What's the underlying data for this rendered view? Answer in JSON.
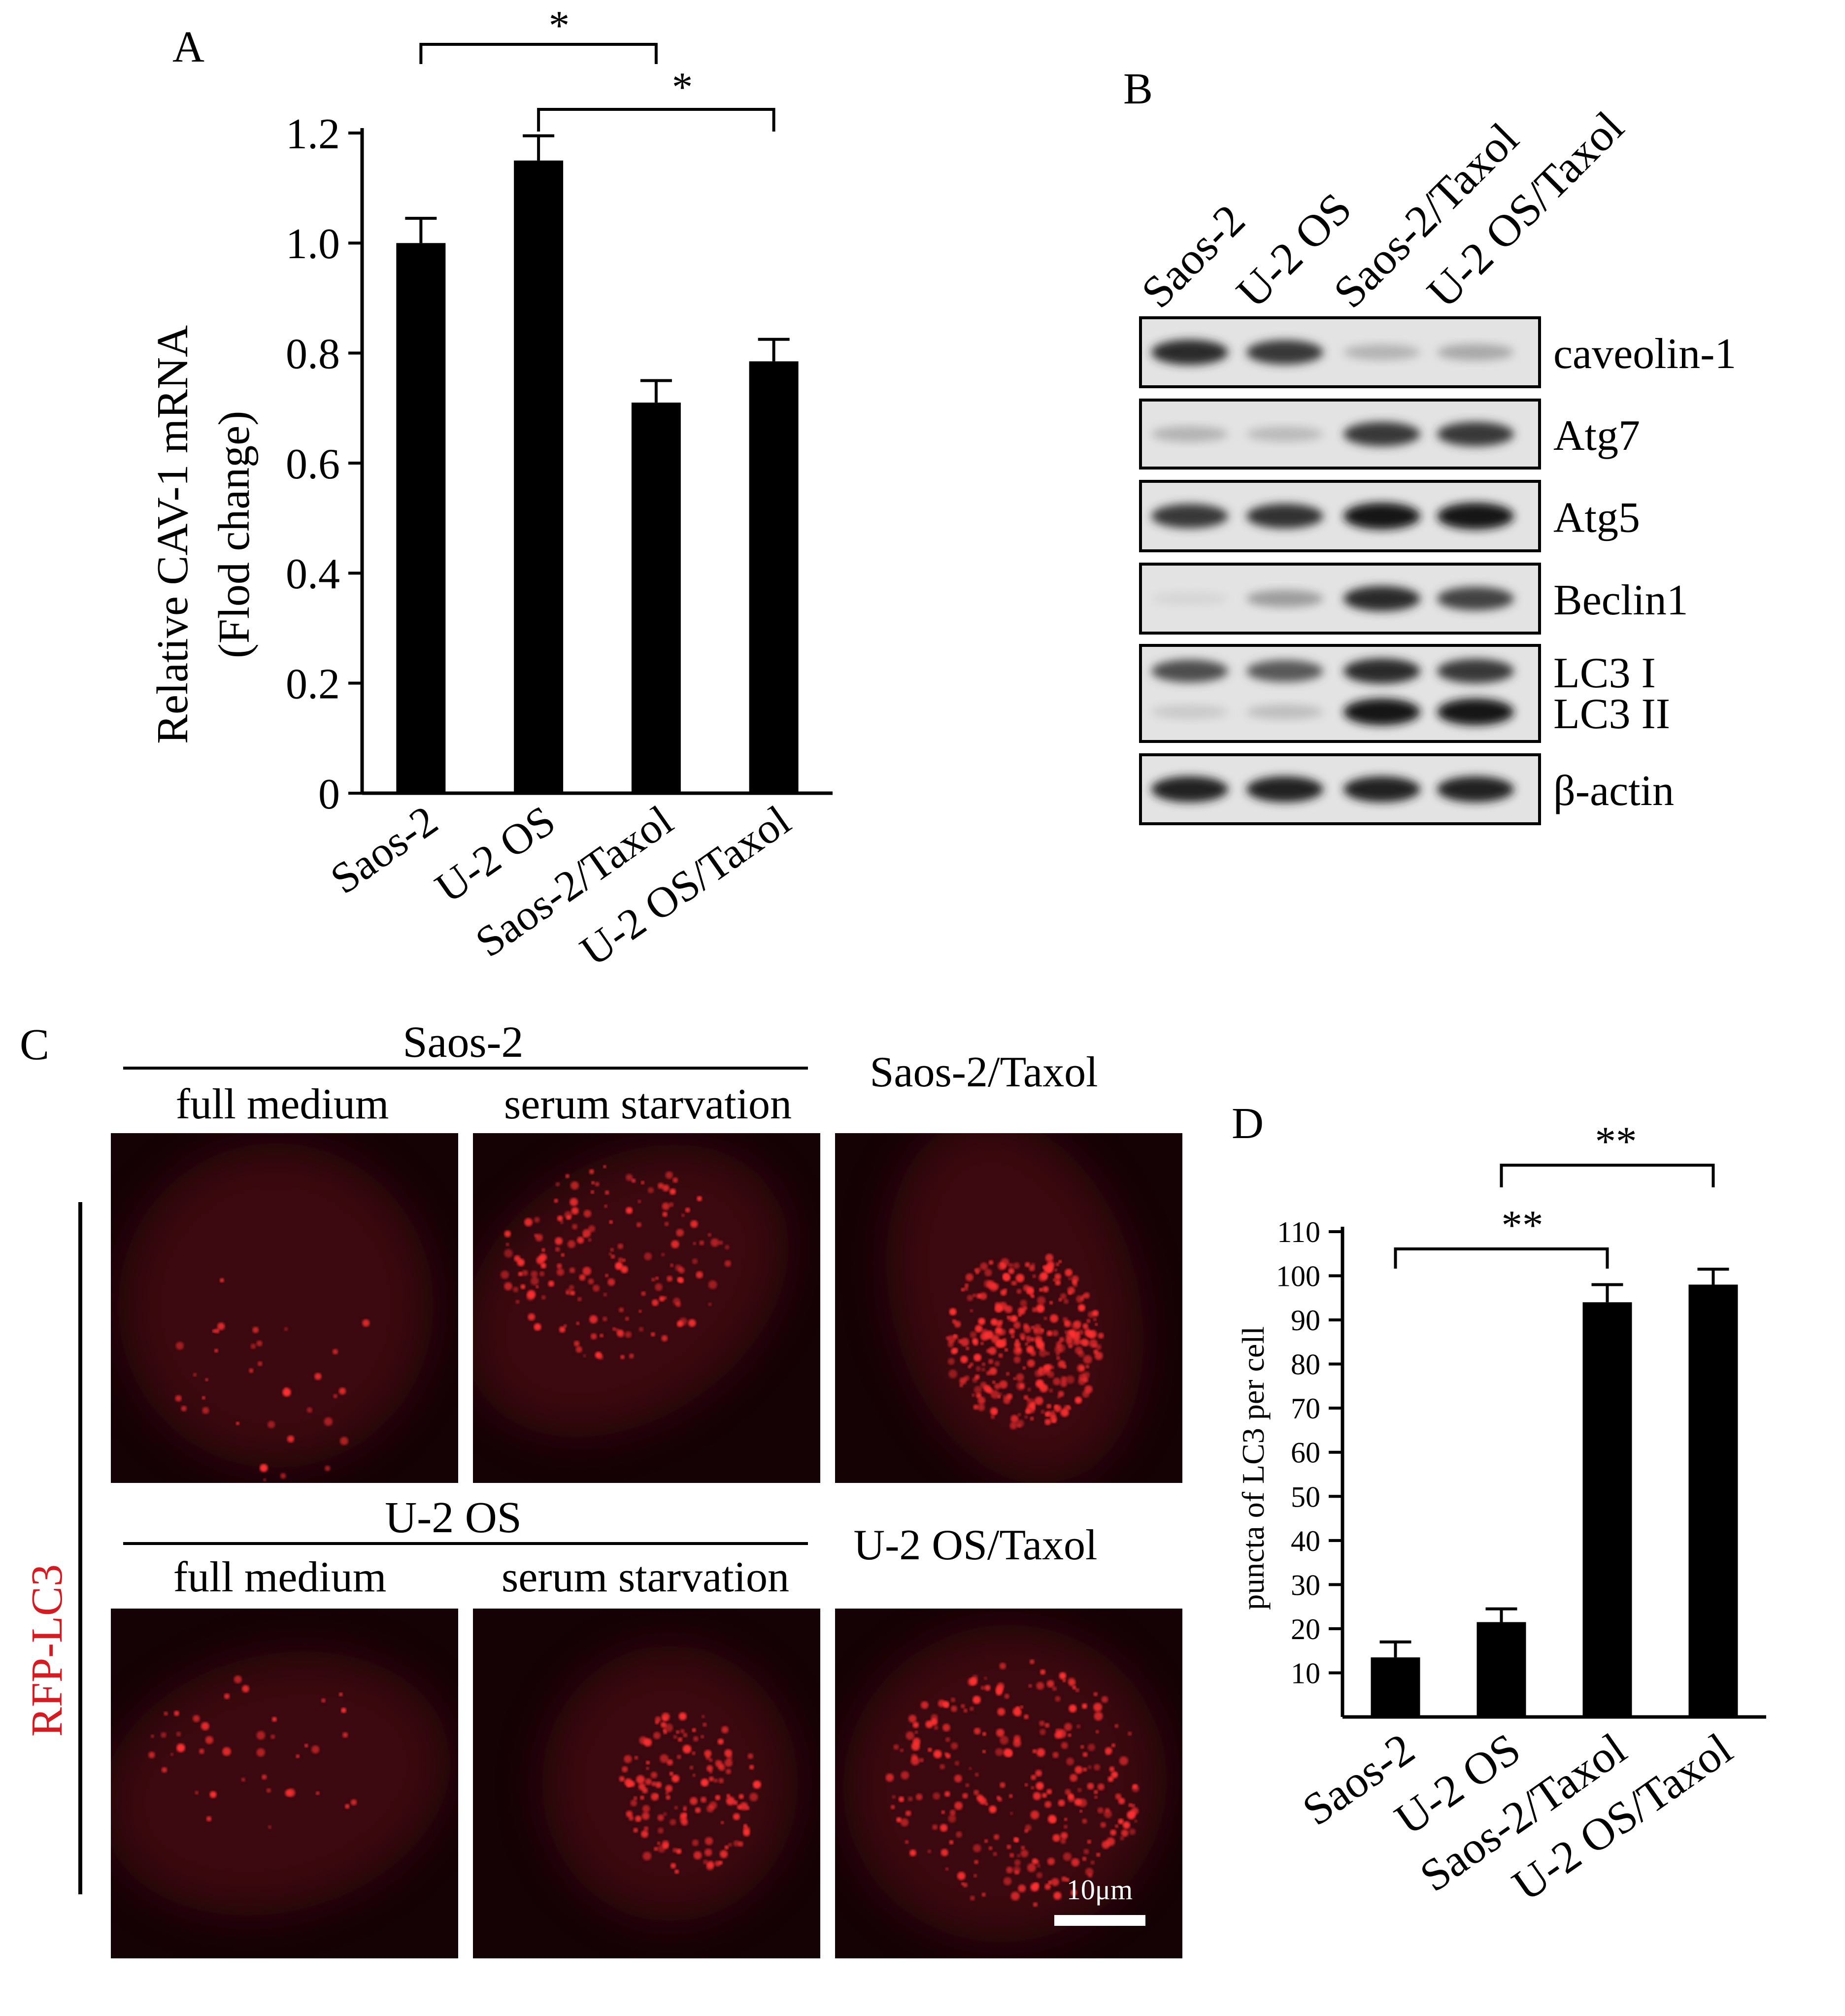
{
  "panels": {
    "a": {
      "letter": "A",
      "ylabel_line1": "Relative CAV-1 mRNA",
      "ylabel_line2": "(Flod change)",
      "sig": [
        "*",
        "*"
      ]
    },
    "b": {
      "letter": "B",
      "lanes": [
        "Saos-2",
        "U-2 OS",
        "Saos-2/Taxol",
        "U-2 OS/Taxol"
      ],
      "blots": [
        {
          "label": "caveolin-1",
          "intensity": [
            0.85,
            0.8,
            0.25,
            0.3
          ]
        },
        {
          "label": "Atg7",
          "intensity": [
            0.25,
            0.22,
            0.8,
            0.8
          ]
        },
        {
          "label": "Atg5",
          "intensity": [
            0.8,
            0.82,
            0.95,
            0.95
          ]
        },
        {
          "label": "Beclin1",
          "intensity": [
            0.1,
            0.35,
            0.85,
            0.75
          ]
        },
        {
          "label": "LC3 I",
          "label2": "LC3 II",
          "intensity": [
            0.7,
            0.65,
            0.85,
            0.8
          ],
          "intensity2": [
            0.15,
            0.2,
            0.95,
            0.95
          ]
        },
        {
          "label": "β-actin",
          "intensity": [
            0.9,
            0.9,
            0.9,
            0.9
          ]
        }
      ]
    },
    "c": {
      "letter": "C",
      "side_label": "RFP-LC3",
      "group1": "Saos-2",
      "group2": "U-2 OS",
      "col_full": "full medium",
      "col_serum": "serum starvation",
      "col_taxol1": "Saos-2/Taxol",
      "col_taxol2": "U-2 OS/Taxol",
      "scale_bar": "10μm",
      "colors": {
        "label_red": "#d71920",
        "puncta": "#ff3030",
        "panel_bg": "#140205"
      }
    },
    "d": {
      "letter": "D",
      "ylabel": "puncta of LC3 per cell",
      "sig": [
        "**",
        "**"
      ]
    }
  },
  "chart_data": [
    {
      "type": "bar",
      "categories": [
        "Saos-2",
        "U-2 OS",
        "Saos-2/Taxol",
        "U-2 OS/Taxol"
      ],
      "values": [
        1.0,
        1.15,
        0.71,
        0.785
      ],
      "errors": [
        0.045,
        0.045,
        0.04,
        0.04
      ],
      "xlabel": "",
      "ylabel": "Relative CAV-1 mRNA (Flod change)",
      "ylim": [
        0,
        1.2
      ],
      "yticks": [
        0,
        0.2,
        0.4,
        0.6,
        0.8,
        1.0,
        1.2
      ],
      "ytick_labels": [
        "0",
        "0.2",
        "0.4",
        "0.6",
        "0.8",
        "1.0",
        "1.2"
      ],
      "grid": false,
      "significance": [
        {
          "from": "Saos-2",
          "to": "Saos-2/Taxol",
          "label": "*"
        },
        {
          "from": "U-2 OS",
          "to": "U-2 OS/Taxol",
          "label": "*"
        }
      ]
    },
    {
      "type": "bar",
      "categories": [
        "Saos-2",
        "U-2 OS",
        "Saos-2/Taxol",
        "U-2 OS/Taxol"
      ],
      "values": [
        13.5,
        21.5,
        94,
        98
      ],
      "errors": [
        3.5,
        3,
        4,
        3.5
      ],
      "xlabel": "",
      "ylabel": "puncta of LC3 per cell",
      "ylim": [
        0,
        110
      ],
      "yticks": [
        10,
        20,
        30,
        40,
        50,
        60,
        70,
        80,
        90,
        100,
        110
      ],
      "ytick_labels": [
        "10",
        "20",
        "30",
        "40",
        "50",
        "60",
        "70",
        "80",
        "90",
        "100",
        "110"
      ],
      "grid": false,
      "significance": [
        {
          "from": "Saos-2",
          "to": "Saos-2/Taxol",
          "label": "**"
        },
        {
          "from": "U-2 OS",
          "to": "U-2 OS/Taxol",
          "label": "**"
        }
      ]
    }
  ]
}
